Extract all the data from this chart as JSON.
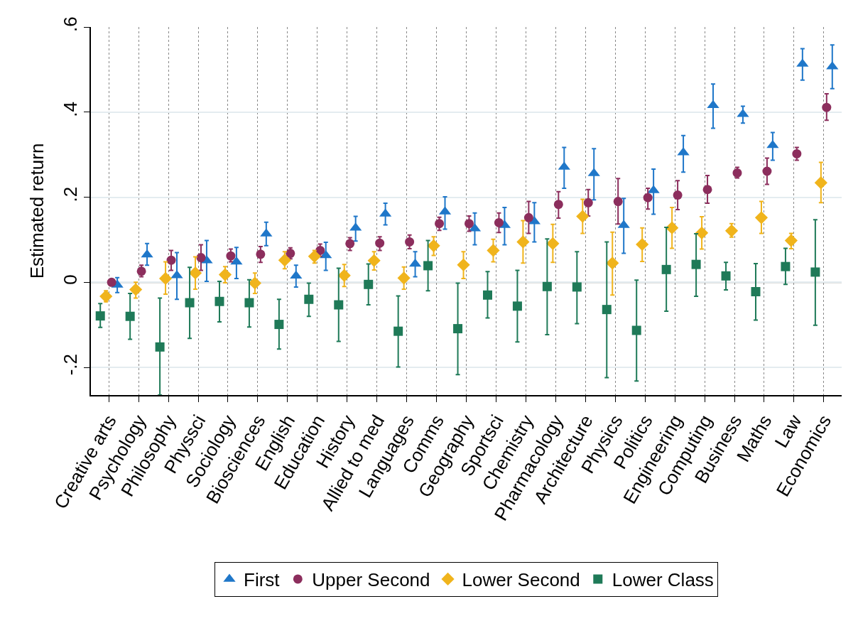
{
  "chart_data": {
    "type": "scatter",
    "ylabel": "Estimated return",
    "categories": [
      "Creative arts",
      "Psychology",
      "Philosophy",
      "Physsci",
      "Sociology",
      "Biosciences",
      "English",
      "Education",
      "History",
      "Allied to med",
      "Languages",
      "Comms",
      "Geography",
      "Sportsci",
      "Chemistry",
      "Pharmacology",
      "Architecture",
      "Physics",
      "Politics",
      "Engineering",
      "Computing",
      "Business",
      "Maths",
      "Law",
      "Economics"
    ],
    "series": [
      {
        "name": "First",
        "color": "#1f77c9",
        "marker": "triangle",
        "values": [
          -0.006,
          0.065,
          0.016,
          0.051,
          0.048,
          0.114,
          0.015,
          0.063,
          0.128,
          0.161,
          0.043,
          0.166,
          0.126,
          0.134,
          0.143,
          0.271,
          0.256,
          0.134,
          0.216,
          0.305,
          0.416,
          0.395,
          0.322,
          0.513,
          0.507
        ],
        "errors": [
          [
            -0.024,
            0.011
          ],
          [
            0.04,
            0.091
          ],
          [
            -0.04,
            0.07
          ],
          [
            0.002,
            0.098
          ],
          [
            0.009,
            0.082
          ],
          [
            0.086,
            0.141
          ],
          [
            -0.011,
            0.04
          ],
          [
            0.028,
            0.094
          ],
          [
            0.097,
            0.155
          ],
          [
            0.135,
            0.186
          ],
          [
            0.013,
            0.072
          ],
          [
            0.125,
            0.201
          ],
          [
            0.088,
            0.163
          ],
          [
            0.088,
            0.176
          ],
          [
            0.095,
            0.187
          ],
          [
            0.221,
            0.317
          ],
          [
            0.194,
            0.314
          ],
          [
            0.068,
            0.197
          ],
          [
            0.16,
            0.266
          ],
          [
            0.259,
            0.345
          ],
          [
            0.362,
            0.466
          ],
          [
            0.374,
            0.414
          ],
          [
            0.287,
            0.352
          ],
          [
            0.475,
            0.549
          ],
          [
            0.455,
            0.558
          ]
        ]
      },
      {
        "name": "Upper Second",
        "color": "#8c2e5d",
        "marker": "circle",
        "values": [
          0.0,
          0.026,
          0.052,
          0.058,
          0.062,
          0.066,
          0.068,
          0.075,
          0.091,
          0.092,
          0.095,
          0.138,
          0.138,
          0.14,
          0.152,
          0.183,
          0.187,
          0.19,
          0.199,
          0.205,
          0.218,
          0.257,
          0.261,
          0.302,
          0.411
        ],
        "errors": [
          null,
          [
            0.013,
            0.04
          ],
          [
            0.028,
            0.075
          ],
          [
            0.028,
            0.088
          ],
          [
            0.048,
            0.078
          ],
          [
            0.047,
            0.084
          ],
          [
            0.055,
            0.081
          ],
          [
            0.061,
            0.09
          ],
          [
            0.075,
            0.105
          ],
          [
            0.075,
            0.107
          ],
          [
            0.079,
            0.111
          ],
          [
            0.122,
            0.153
          ],
          [
            0.12,
            0.156
          ],
          [
            0.117,
            0.163
          ],
          [
            0.115,
            0.19
          ],
          [
            0.151,
            0.213
          ],
          [
            0.156,
            0.218
          ],
          [
            0.137,
            0.244
          ],
          [
            0.172,
            0.221
          ],
          [
            0.171,
            0.239
          ],
          [
            0.186,
            0.251
          ],
          [
            0.245,
            0.27
          ],
          [
            0.23,
            0.292
          ],
          [
            0.287,
            0.317
          ],
          [
            0.381,
            0.443
          ]
        ]
      },
      {
        "name": "Lower Second",
        "color": "#f0b41c",
        "marker": "diamond",
        "values": [
          -0.033,
          -0.017,
          0.009,
          0.022,
          0.018,
          -0.002,
          0.052,
          0.061,
          0.016,
          0.051,
          0.01,
          0.086,
          0.041,
          0.075,
          0.095,
          0.091,
          0.155,
          0.045,
          0.089,
          0.128,
          0.116,
          0.121,
          0.152,
          0.098,
          0.234
        ],
        "errors": [
          [
            -0.046,
            -0.02
          ],
          [
            -0.037,
            0.0
          ],
          [
            -0.028,
            0.048
          ],
          [
            -0.016,
            0.06
          ],
          [
            -0.001,
            0.037
          ],
          [
            -0.026,
            0.022
          ],
          [
            0.032,
            0.072
          ],
          [
            0.045,
            0.075
          ],
          [
            -0.01,
            0.042
          ],
          [
            0.029,
            0.072
          ],
          [
            -0.016,
            0.036
          ],
          [
            0.063,
            0.107
          ],
          [
            0.009,
            0.072
          ],
          [
            0.048,
            0.101
          ],
          [
            0.045,
            0.145
          ],
          [
            0.047,
            0.136
          ],
          [
            0.115,
            0.195
          ],
          [
            -0.03,
            0.118
          ],
          [
            0.049,
            0.128
          ],
          [
            0.08,
            0.176
          ],
          [
            0.078,
            0.154
          ],
          [
            0.106,
            0.138
          ],
          [
            0.115,
            0.19
          ],
          [
            0.079,
            0.115
          ],
          [
            0.187,
            0.282
          ]
        ]
      },
      {
        "name": "Lower Class",
        "color": "#1f7a58",
        "marker": "square",
        "values": [
          -0.079,
          -0.08,
          -0.152,
          -0.048,
          -0.045,
          -0.048,
          -0.099,
          -0.04,
          -0.053,
          -0.005,
          -0.115,
          0.039,
          -0.109,
          -0.03,
          -0.056,
          -0.01,
          -0.011,
          -0.064,
          -0.113,
          0.03,
          0.042,
          0.015,
          -0.022,
          0.037,
          0.024
        ],
        "errors": [
          [
            -0.106,
            -0.05
          ],
          [
            -0.134,
            -0.026
          ],
          [
            -0.265,
            -0.037
          ],
          [
            -0.132,
            0.035
          ],
          [
            -0.093,
            0.002
          ],
          [
            -0.105,
            0.006
          ],
          [
            -0.157,
            -0.04
          ],
          [
            -0.08,
            -0.002
          ],
          [
            -0.139,
            0.033
          ],
          [
            -0.053,
            0.043
          ],
          [
            -0.199,
            -0.032
          ],
          [
            -0.02,
            0.098
          ],
          [
            -0.217,
            -0.002
          ],
          [
            -0.084,
            0.025
          ],
          [
            -0.14,
            0.028
          ],
          [
            -0.123,
            0.102
          ],
          [
            -0.097,
            0.072
          ],
          [
            -0.224,
            0.095
          ],
          [
            -0.232,
            0.005
          ],
          [
            -0.068,
            0.129
          ],
          [
            -0.033,
            0.114
          ],
          [
            -0.018,
            0.047
          ],
          [
            -0.089,
            0.044
          ],
          [
            -0.005,
            0.08
          ],
          [
            -0.101,
            0.147
          ]
        ]
      }
    ],
    "ylim": [
      -0.265,
      0.6
    ],
    "yticks": [
      {
        "value": -0.2,
        "label": "-.2"
      },
      0,
      {
        "value": 0.2,
        "label": ".2"
      },
      {
        "value": 0.4,
        "label": ".4"
      },
      {
        "value": 0.6,
        "label": ".6"
      }
    ],
    "ref_lines": [
      {
        "axis": "y",
        "value": 0,
        "color": "#808080"
      }
    ],
    "grid": true,
    "legend": "bottom"
  }
}
